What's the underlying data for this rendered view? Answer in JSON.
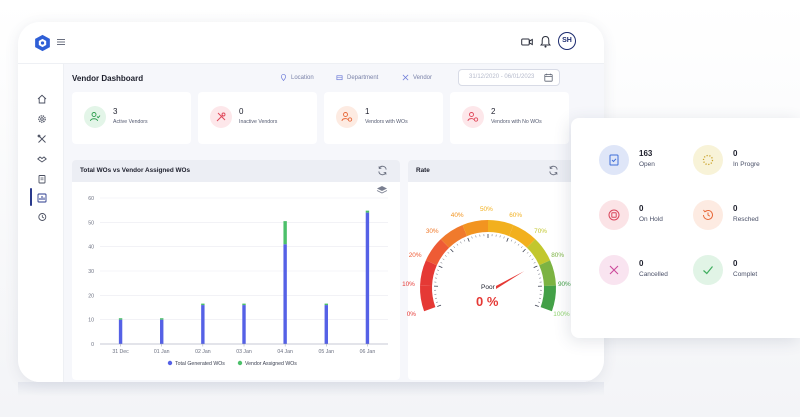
{
  "header": {
    "avatar_initials": "SH",
    "icons": [
      "brand-logo-icon",
      "menu-icon",
      "video-camera-icon",
      "bell-icon"
    ]
  },
  "sidebar": {
    "items": [
      {
        "icon": "home-icon"
      },
      {
        "icon": "gear-icon"
      },
      {
        "icon": "tools-icon"
      },
      {
        "icon": "handshake-icon"
      },
      {
        "icon": "clipboard-icon"
      },
      {
        "icon": "bar-chart-icon",
        "active": true
      },
      {
        "icon": "history-icon"
      }
    ]
  },
  "page": {
    "title": "Vendor Dashboard",
    "filters": [
      {
        "label": "Location",
        "icon": "location-pin-icon"
      },
      {
        "label": "Department",
        "icon": "department-icon"
      },
      {
        "label": "Vendor",
        "icon": "vendor-icon"
      }
    ],
    "date_range": "31/12/2020 - 06/01/2023"
  },
  "stats": [
    {
      "value": "3",
      "label": "Active Vendors",
      "icon": "user-check-icon",
      "color": "#2e9e4f",
      "bg": "#e3f5e8"
    },
    {
      "value": "0",
      "label": "Inactive Vendors",
      "icon": "tools-off-icon",
      "color": "#e0485a",
      "bg": "#fde7ea"
    },
    {
      "value": "1",
      "label": "Vendors with WOs",
      "icon": "user-gear-icon",
      "color": "#e8693a",
      "bg": "#fdebe2"
    },
    {
      "value": "2",
      "label": "Vendors with No WOs",
      "icon": "user-gear-off-icon",
      "color": "#e0485a",
      "bg": "#fde7ea"
    }
  ],
  "bar_panel": {
    "title": "Total WOs vs Vendor Assigned WOs"
  },
  "chart_data": {
    "type": "bar",
    "title": "Total WOs vs Vendor Assigned WOs",
    "categories": [
      "31 Dec",
      "01 Jan",
      "02 Jan",
      "03 Jan",
      "04 Jan",
      "05 Jan",
      "06 Jan"
    ],
    "ylim": [
      0,
      60
    ],
    "yticks": [
      0,
      10,
      20,
      30,
      40,
      50,
      60
    ],
    "grid": true,
    "legend": "bottom",
    "stacked": true,
    "series": [
      {
        "name": "Total Generated WOs",
        "color": "#5561e6",
        "values": [
          10,
          10,
          16,
          16,
          41,
          16,
          54
        ]
      },
      {
        "name": "Vendor Assigned WOs",
        "color": "#4cc06a",
        "values": [
          0.6,
          0.6,
          0.6,
          0.6,
          9.5,
          0.6,
          0.8
        ]
      }
    ]
  },
  "gauge_panel": {
    "title": "Rate",
    "caption": "Poor",
    "value_text": "0 %",
    "value": 0,
    "ticks": [
      {
        "label": "0%",
        "color": "#e53935"
      },
      {
        "label": "10%",
        "color": "#e53935"
      },
      {
        "label": "20%",
        "color": "#ee5b35"
      },
      {
        "label": "30%",
        "color": "#f07a2c"
      },
      {
        "label": "40%",
        "color": "#f29420"
      },
      {
        "label": "50%",
        "color": "#f2b01e"
      },
      {
        "label": "60%",
        "color": "#f2b01e"
      },
      {
        "label": "70%",
        "color": "#c2c72d"
      },
      {
        "label": "80%",
        "color": "#7cb342"
      },
      {
        "label": "90%",
        "color": "#43a047"
      },
      {
        "label": "100%",
        "color": "#8fd46f"
      }
    ]
  },
  "work_orders": [
    {
      "value": "163",
      "label": "Open",
      "icon": "clipboard-check-icon",
      "color": "#3f6fd8",
      "bg": "#dfe6f8"
    },
    {
      "value": "0",
      "label": "In Progre",
      "icon": "spinner-icon",
      "color": "#c9a227",
      "bg": "#f8f3d8"
    },
    {
      "value": "0",
      "label": "On Hold",
      "icon": "pause-circle-icon",
      "color": "#d9455a",
      "bg": "#fbe3e6"
    },
    {
      "value": "0",
      "label": "Resched",
      "icon": "clock-reset-icon",
      "color": "#e8693a",
      "bg": "#fdebe2"
    },
    {
      "value": "0",
      "label": "Cancelled",
      "icon": "x-mark-icon",
      "color": "#cc4a9a",
      "bg": "#f9e4f0"
    },
    {
      "value": "0",
      "label": "Complet",
      "icon": "check-mark-icon",
      "color": "#3fae5e",
      "bg": "#e1f4e6"
    }
  ]
}
